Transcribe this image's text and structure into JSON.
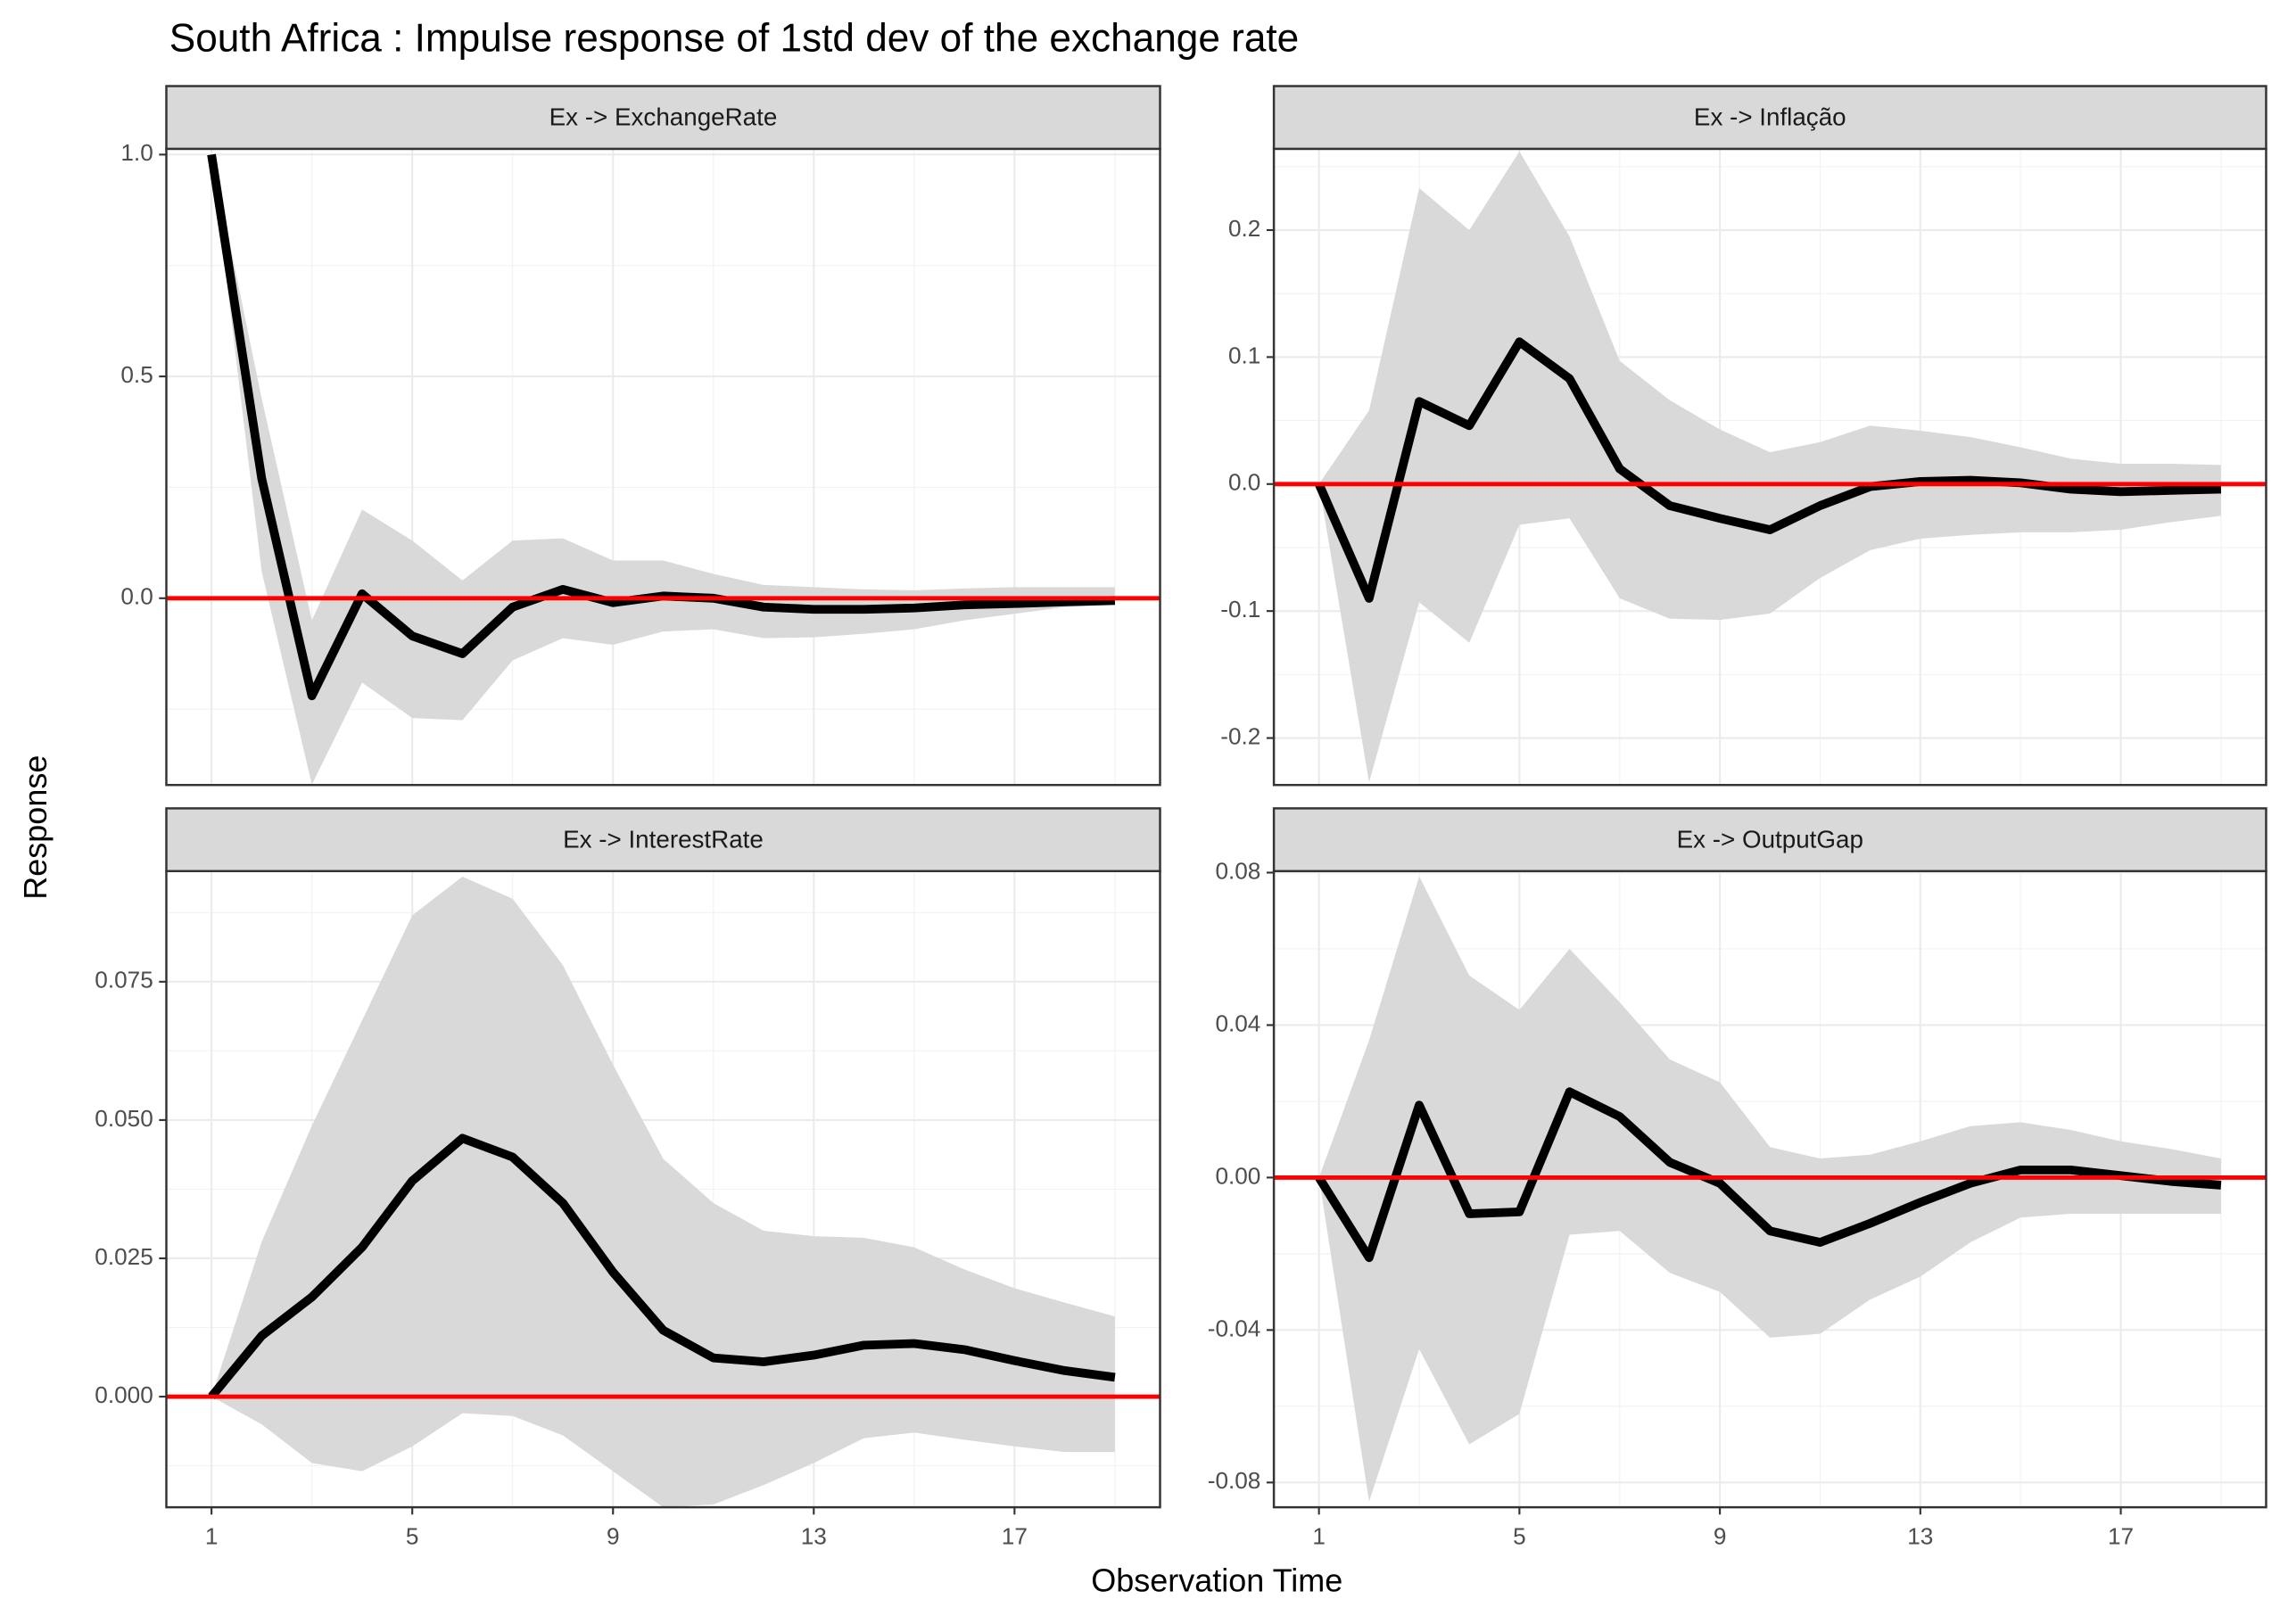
{
  "title": "South Africa : Impulse response of 1std dev of the exchange rate",
  "xlabel": "Observation Time",
  "ylabel": "Response",
  "chart_data": [
    {
      "type": "line",
      "facet_label": "Ex -> ExchangeRate",
      "x": [
        1,
        2,
        3,
        4,
        5,
        6,
        7,
        8,
        9,
        10,
        11,
        12,
        13,
        14,
        15,
        16,
        17,
        18,
        19
      ],
      "values": [
        1.0,
        0.27,
        -0.22,
        0.01,
        -0.085,
        -0.125,
        -0.02,
        0.02,
        -0.01,
        0.005,
        0.0,
        -0.02,
        -0.025,
        -0.025,
        -0.022,
        -0.015,
        -0.012,
        -0.008,
        -0.005
      ],
      "upper": [
        1.0,
        0.45,
        -0.05,
        0.2,
        0.13,
        0.04,
        0.13,
        0.135,
        0.085,
        0.085,
        0.055,
        0.03,
        0.025,
        0.02,
        0.018,
        0.022,
        0.025,
        0.025,
        0.025
      ],
      "lower": [
        1.0,
        0.06,
        -0.42,
        -0.19,
        -0.27,
        -0.275,
        -0.14,
        -0.09,
        -0.105,
        -0.075,
        -0.07,
        -0.09,
        -0.088,
        -0.08,
        -0.07,
        -0.05,
        -0.035,
        -0.02,
        -0.015
      ],
      "reference_line": 0,
      "xlim": [
        0.1,
        19.9
      ],
      "xticks": [
        1,
        5,
        9,
        13,
        17
      ],
      "ylim": [
        -0.421,
        1.013
      ],
      "yticks": [
        {
          "value": 0,
          "label": "0.0"
        },
        {
          "value": 0.5,
          "label": "0.5"
        },
        {
          "value": 1,
          "label": "1.0"
        }
      ]
    },
    {
      "type": "line",
      "facet_label": "Ex -> Inflação",
      "x": [
        1,
        2,
        3,
        4,
        5,
        6,
        7,
        8,
        9,
        10,
        11,
        12,
        13,
        14,
        15,
        16,
        17,
        18,
        19
      ],
      "values": [
        0,
        -0.09,
        0.065,
        0.046,
        0.112,
        0.083,
        0.012,
        -0.017,
        -0.027,
        -0.036,
        -0.017,
        -0.002,
        0.002,
        0.003,
        0.001,
        -0.004,
        -0.006,
        -0.005,
        -0.004
      ],
      "upper": [
        0,
        0.058,
        0.233,
        0.2,
        0.262,
        0.195,
        0.097,
        0.066,
        0.043,
        0.025,
        0.033,
        0.046,
        0.042,
        0.037,
        0.029,
        0.02,
        0.016,
        0.016,
        0.015
      ],
      "lower": [
        0,
        -0.235,
        -0.093,
        -0.125,
        -0.032,
        -0.027,
        -0.09,
        -0.106,
        -0.107,
        -0.102,
        -0.074,
        -0.052,
        -0.043,
        -0.04,
        -0.038,
        -0.038,
        -0.036,
        -0.03,
        -0.025
      ],
      "reference_line": 0,
      "xlim": [
        0.1,
        19.9
      ],
      "xticks": [
        1,
        5,
        9,
        13,
        17
      ],
      "ylim": [
        -0.237,
        0.264
      ],
      "yticks": [
        -0.2,
        -0.1,
        {
          "value": 0,
          "label": "0.0"
        },
        0.1,
        0.2
      ]
    },
    {
      "type": "line",
      "facet_label": "Ex -> InterestRate",
      "x": [
        1,
        2,
        3,
        4,
        5,
        6,
        7,
        8,
        9,
        10,
        11,
        12,
        13,
        14,
        15,
        16,
        17,
        18,
        19
      ],
      "values": [
        0,
        0.011,
        0.018,
        0.027,
        0.039,
        0.0467,
        0.0433,
        0.035,
        0.0225,
        0.012,
        0.007,
        0.0063,
        0.0075,
        0.0093,
        0.0096,
        0.0085,
        0.0065,
        0.0047,
        0.0035
      ],
      "upper": [
        0,
        0.028,
        0.049,
        0.068,
        0.087,
        0.094,
        0.09,
        0.078,
        0.06,
        0.043,
        0.035,
        0.03,
        0.029,
        0.0287,
        0.027,
        0.023,
        0.0196,
        0.017,
        0.0145
      ],
      "lower": [
        0,
        -0.005,
        -0.012,
        -0.0135,
        -0.009,
        -0.003,
        -0.0035,
        -0.007,
        -0.0135,
        -0.02,
        -0.0195,
        -0.016,
        -0.012,
        -0.0075,
        -0.0065,
        -0.0078,
        -0.009,
        -0.01,
        -0.01
      ],
      "reference_line": 0,
      "xlim": [
        0.1,
        19.9
      ],
      "xticks": [
        1,
        5,
        9,
        13,
        17
      ],
      "ylim": [
        -0.02,
        0.095
      ],
      "yticks": [
        {
          "value": 0,
          "label": "0.000"
        },
        {
          "value": 0.025,
          "label": "0.025"
        },
        {
          "value": 0.05,
          "label": "0.050"
        },
        {
          "value": 0.075,
          "label": "0.075"
        }
      ]
    },
    {
      "type": "line",
      "facet_label": "Ex -> OutputGap",
      "x": [
        1,
        2,
        3,
        4,
        5,
        6,
        7,
        8,
        9,
        10,
        11,
        12,
        13,
        14,
        15,
        16,
        17,
        18,
        19
      ],
      "values": [
        0,
        -0.021,
        0.019,
        -0.0095,
        -0.009,
        0.0225,
        0.016,
        0.004,
        -0.0015,
        -0.014,
        -0.017,
        -0.012,
        -0.0065,
        -0.0015,
        0.002,
        0.002,
        0.0005,
        -0.001,
        -0.002
      ],
      "upper": [
        0,
        0.036,
        0.079,
        0.053,
        0.044,
        0.06,
        0.046,
        0.031,
        0.025,
        0.008,
        0.005,
        0.006,
        0.0095,
        0.0135,
        0.0145,
        0.0125,
        0.0095,
        0.0075,
        0.005
      ],
      "lower": [
        0,
        -0.085,
        -0.045,
        -0.07,
        -0.062,
        -0.015,
        -0.014,
        -0.025,
        -0.03,
        -0.042,
        -0.041,
        -0.032,
        -0.026,
        -0.017,
        -0.0105,
        -0.0095,
        -0.0095,
        -0.0095,
        -0.0095
      ],
      "reference_line": 0,
      "xlim": [
        0.1,
        19.9
      ],
      "xticks": [
        1,
        5,
        9,
        13,
        17
      ],
      "ylim": [
        -0.0865,
        0.0804
      ],
      "yticks": [
        -0.08,
        -0.04,
        {
          "value": 0,
          "label": "0.00"
        },
        0.04,
        0.08
      ]
    }
  ],
  "line_color": "#000000",
  "band_color": "#d9d9d9",
  "reference_color": "#ff0000",
  "strip_color": "#d9d9d9",
  "grid": true
}
